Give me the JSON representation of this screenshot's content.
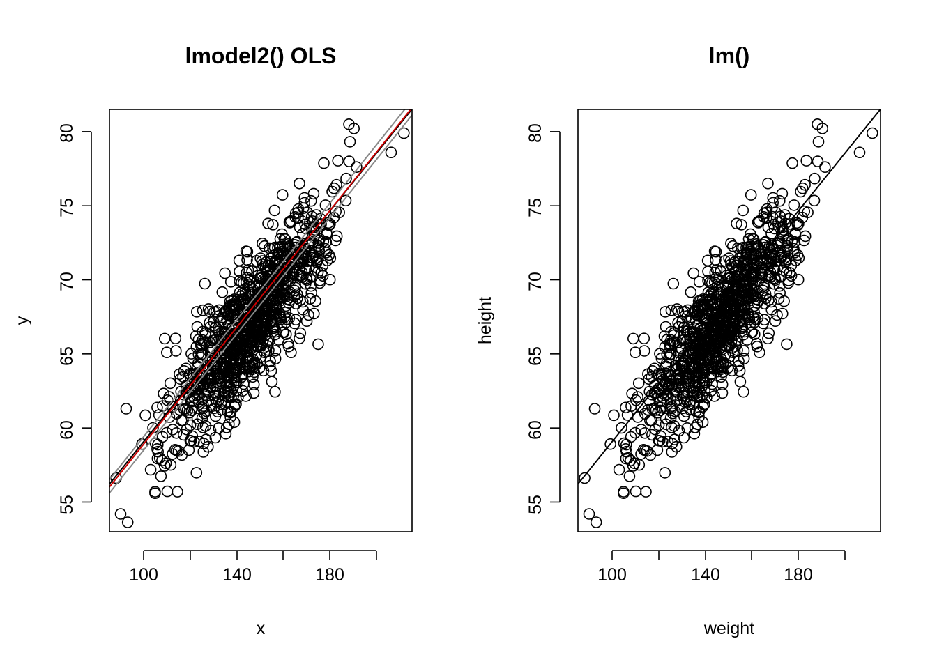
{
  "chart_data": [
    {
      "type": "scatter",
      "title": "lmodel2() OLS",
      "xlabel": "x",
      "ylabel": "y",
      "xlim": [
        85,
        215
      ],
      "ylim": [
        53,
        81.5
      ],
      "x_ticks": [
        "100",
        "140",
        "180"
      ],
      "x_tick_values": [
        100,
        120,
        140,
        160,
        180,
        200
      ],
      "y_ticks": [
        "55",
        "60",
        "65",
        "70",
        "75",
        "80"
      ],
      "y_tick_values": [
        55,
        60,
        65,
        70,
        75,
        80
      ],
      "grid": false,
      "point_style": "open-circle",
      "fit_lines": [
        {
          "color": "#000000",
          "x": [
            85,
            215
          ],
          "y": [
            56.22,
            81.52
          ]
        },
        {
          "color": "#888888",
          "x": [
            85,
            215
          ],
          "y": [
            56.52,
            82.12
          ]
        },
        {
          "color": "#888888",
          "x": [
            85,
            215
          ],
          "y": [
            55.62,
            81.12
          ]
        },
        {
          "color": "#cc0000",
          "x": [
            85,
            215
          ],
          "y": [
            56.02,
            81.62
          ]
        }
      ],
      "sample_points": {
        "x": [
          89.8,
          92.2,
          104.6,
          104.6,
          114.2,
          181.4,
          206.0,
          211.5,
          187.9,
          163.0
        ],
        "y": [
          54.2,
          61.3,
          55.7,
          55.6,
          55.7,
          74.2,
          78.6,
          79.9,
          80.5,
          65.1
        ]
      }
    },
    {
      "type": "scatter",
      "title": "lm()",
      "xlabel": "weight",
      "ylabel": "height",
      "xlim": [
        85,
        215
      ],
      "ylim": [
        53,
        81.5
      ],
      "x_ticks": [
        "100",
        "140",
        "180"
      ],
      "x_tick_values": [
        100,
        120,
        140,
        160,
        180,
        200
      ],
      "y_ticks": [
        "55",
        "60",
        "65",
        "70",
        "75",
        "80"
      ],
      "y_tick_values": [
        55,
        60,
        65,
        70,
        75,
        80
      ],
      "grid": false,
      "point_style": "open-circle",
      "fit_lines": [
        {
          "color": "#000000",
          "x": [
            85,
            215
          ],
          "y": [
            56.22,
            81.52
          ]
        }
      ],
      "sample_points": {
        "x": [
          89.8,
          92.2,
          104.6,
          104.6,
          114.2,
          181.4,
          206.0,
          211.5,
          187.9,
          163.0
        ],
        "y": [
          54.2,
          61.3,
          55.7,
          55.6,
          55.7,
          74.2,
          78.6,
          79.9,
          80.5,
          65.1
        ]
      }
    }
  ]
}
